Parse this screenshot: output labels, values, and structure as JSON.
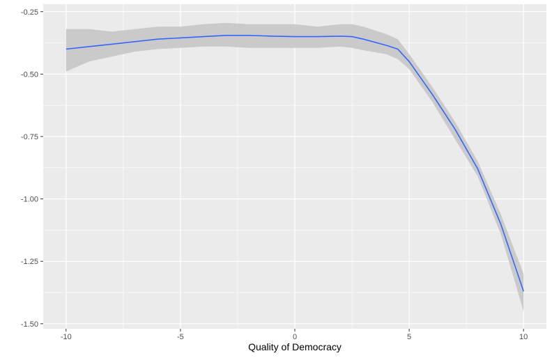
{
  "chart_data": {
    "type": "line",
    "title": "",
    "xlabel": "Quality of Democracy",
    "ylabel": "",
    "xlim": [
      -11,
      11
    ],
    "ylim": [
      -1.5,
      -0.25
    ],
    "x_ticks": [
      -10,
      -5,
      0,
      5,
      10
    ],
    "x_tick_labels": [
      "-10",
      "-5",
      "0",
      "5",
      "10"
    ],
    "y_ticks": [
      -0.25,
      -0.5,
      -0.75,
      -1.0,
      -1.25,
      -1.5
    ],
    "y_tick_labels": [
      "-0.25",
      "-0.50",
      "-0.75",
      "-1.00",
      "-1.25",
      "-1.50"
    ],
    "grid": true,
    "legend": "none",
    "series": [
      {
        "x": [
          -10,
          -9,
          -8,
          -7,
          -6,
          -5,
          -4,
          -3,
          -2,
          -1,
          0,
          1,
          2,
          2.5,
          3,
          4,
          4.5,
          5,
          6,
          7,
          8,
          9,
          10
        ],
        "y": [
          -0.4,
          -0.39,
          -0.38,
          -0.37,
          -0.36,
          -0.355,
          -0.35,
          -0.345,
          -0.345,
          -0.348,
          -0.35,
          -0.35,
          -0.348,
          -0.35,
          -0.36,
          -0.385,
          -0.4,
          -0.45,
          -0.58,
          -0.72,
          -0.88,
          -1.1,
          -1.37
        ],
        "ci_upper": [
          -0.32,
          -0.32,
          -0.33,
          -0.32,
          -0.31,
          -0.31,
          -0.3,
          -0.295,
          -0.3,
          -0.3,
          -0.3,
          -0.31,
          -0.3,
          -0.3,
          -0.31,
          -0.34,
          -0.36,
          -0.42,
          -0.55,
          -0.69,
          -0.85,
          -1.06,
          -1.3
        ],
        "ci_lower": [
          -0.49,
          -0.45,
          -0.43,
          -0.41,
          -0.4,
          -0.395,
          -0.39,
          -0.39,
          -0.395,
          -0.395,
          -0.395,
          -0.395,
          -0.39,
          -0.395,
          -0.405,
          -0.42,
          -0.44,
          -0.48,
          -0.61,
          -0.76,
          -0.91,
          -1.14,
          -1.45
        ]
      }
    ],
    "colors": {
      "panel": "#ebebeb",
      "grid": "#ffffff",
      "ribbon": "#c8c8c8",
      "line": "#3366ff",
      "tick": "#333333"
    }
  }
}
